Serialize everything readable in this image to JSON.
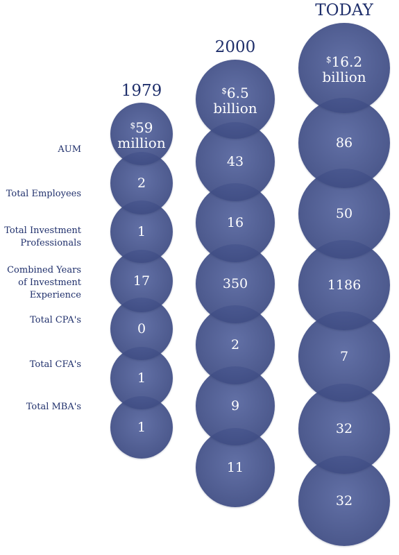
{
  "row_labels": [
    "AUM",
    "Total Employees",
    "Total Investment\nProfessionals",
    "Combined Years\nof Investment\nExperience",
    "Total CPA's",
    "Total CFA's",
    "Total MBA's"
  ],
  "columns": [
    {
      "title": "1979",
      "aum": {
        "symbol": "$",
        "amount": "59",
        "unit": "million"
      },
      "values": [
        "2",
        "1",
        "17",
        "0",
        "1",
        "1"
      ]
    },
    {
      "title": "2000",
      "aum": {
        "symbol": "$",
        "amount": "6.5",
        "unit": "billion"
      },
      "values": [
        "43",
        "16",
        "350",
        "2",
        "9",
        "11"
      ]
    },
    {
      "title": "TODAY",
      "aum": {
        "symbol": "$",
        "amount": "16.2",
        "unit": "billion"
      },
      "values": [
        "86",
        "50",
        "1186",
        "7",
        "32",
        "32"
      ]
    }
  ],
  "colors": {
    "bubble": "#4a5a92",
    "label_text": "#1f2f6b"
  }
}
